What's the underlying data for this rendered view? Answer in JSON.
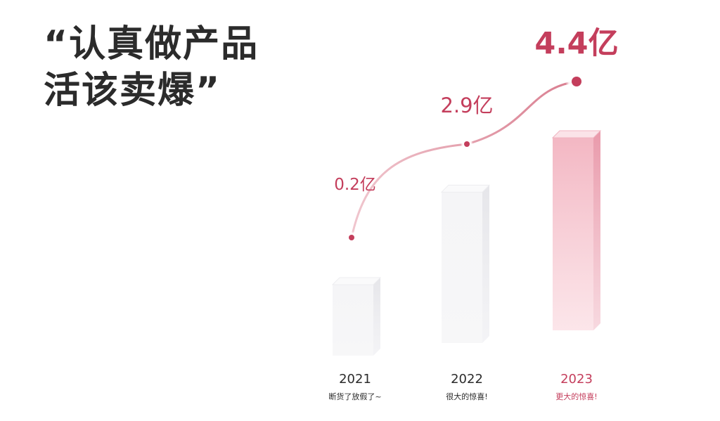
{
  "headline": {
    "line1": "“认真做产品",
    "line2": "活该卖爆”"
  },
  "chart_data": {
    "type": "bar",
    "categories": [
      "2021",
      "2022",
      "2023"
    ],
    "values": [
      0.2,
      2.9,
      4.4
    ],
    "value_labels": [
      "0.2亿",
      "2.9亿",
      "4.4亿"
    ],
    "captions": [
      "断货了放假了~",
      "很大的惊喜!",
      "更大的惊喜!"
    ],
    "overlay": "line",
    "colors": {
      "accent": "#c43e5c",
      "line": "#e8b3bd",
      "bar_light": "#f1f1f3",
      "bar_highlight": "#f6c9d1",
      "text_dark": "#2b2b2b"
    }
  }
}
